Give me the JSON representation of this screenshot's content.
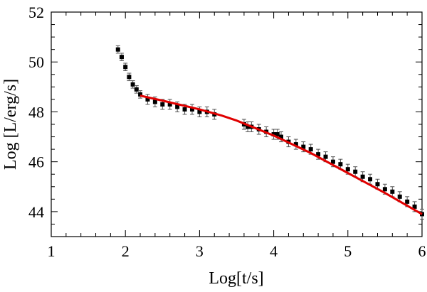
{
  "chart_data": {
    "type": "scatter",
    "title": "",
    "xlabel": "Log[t/s]",
    "ylabel": "Log [L/erg/s]",
    "xlim": [
      1,
      6
    ],
    "ylim": [
      43,
      52
    ],
    "x_ticks": [
      "1",
      "2",
      "3",
      "4",
      "5",
      "6"
    ],
    "y_ticks": [
      "44",
      "46",
      "48",
      "50",
      "52"
    ],
    "grid": false,
    "legend": "none",
    "colors": {
      "data": "#000000",
      "fit": "#e00000"
    },
    "series": [
      {
        "type": "scatter_with_error_bars",
        "x": [
          1.9,
          1.95,
          2.0,
          2.05,
          2.1,
          2.15,
          2.2,
          2.3,
          2.4,
          2.5,
          2.6,
          2.7,
          2.8,
          2.9,
          3.0,
          3.1,
          3.2,
          3.6,
          3.65,
          3.7,
          3.8,
          3.9,
          4.0,
          4.05,
          4.1,
          4.2,
          4.3,
          4.4,
          4.5,
          4.6,
          4.7,
          4.8,
          4.9,
          5.0,
          5.1,
          5.2,
          5.3,
          5.4,
          5.5,
          5.6,
          5.7,
          5.8,
          5.9,
          6.0
        ],
        "y": [
          50.5,
          50.2,
          49.8,
          49.4,
          49.1,
          48.9,
          48.7,
          48.5,
          48.4,
          48.3,
          48.3,
          48.2,
          48.1,
          48.1,
          48.0,
          48.0,
          47.9,
          47.5,
          47.4,
          47.4,
          47.3,
          47.2,
          47.1,
          47.1,
          47.0,
          46.8,
          46.7,
          46.6,
          46.5,
          46.3,
          46.2,
          46.0,
          45.9,
          45.7,
          45.6,
          45.4,
          45.3,
          45.1,
          44.9,
          44.8,
          44.6,
          44.4,
          44.2,
          43.9
        ],
        "err": [
          0.15,
          0.15,
          0.15,
          0.15,
          0.15,
          0.15,
          0.15,
          0.2,
          0.2,
          0.2,
          0.2,
          0.2,
          0.2,
          0.2,
          0.2,
          0.2,
          0.2,
          0.2,
          0.2,
          0.2,
          0.2,
          0.2,
          0.2,
          0.2,
          0.2,
          0.2,
          0.2,
          0.2,
          0.2,
          0.2,
          0.2,
          0.2,
          0.2,
          0.2,
          0.2,
          0.2,
          0.2,
          0.2,
          0.2,
          0.2,
          0.2,
          0.2,
          0.2,
          0.2
        ]
      },
      {
        "type": "line",
        "x": [
          2.2,
          2.5,
          3.0,
          3.3,
          3.5,
          4.0,
          4.5,
          5.0,
          5.5,
          6.0
        ],
        "y": [
          48.65,
          48.45,
          48.1,
          47.85,
          47.65,
          47.05,
          46.35,
          45.55,
          44.75,
          43.9
        ]
      }
    ]
  }
}
